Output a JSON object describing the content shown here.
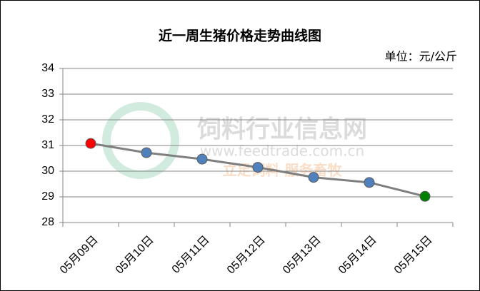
{
  "chart_data": {
    "type": "line",
    "title": "近一周生猪价格走势曲线图",
    "unit_label": "单位：元/公斤",
    "categories": [
      "05月09日",
      "05月10日",
      "05月11日",
      "05月12日",
      "05月13日",
      "05月14日",
      "05月15日"
    ],
    "series": [
      {
        "name": "生猪价格",
        "color": "#7f7f7f",
        "values": [
          31.08,
          30.72,
          30.47,
          30.15,
          29.76,
          29.56,
          29.02
        ],
        "marker_colors": [
          "#ff0000",
          "#4f81bd",
          "#4f81bd",
          "#4f81bd",
          "#4f81bd",
          "#4f81bd",
          "#008000"
        ]
      }
    ],
    "ylim": [
      28,
      34
    ],
    "yticks": [
      28,
      29,
      30,
      31,
      32,
      33,
      34
    ],
    "grid": true,
    "watermark": {
      "name": "饲料行业信息网",
      "url": "www.feedtrade.com.cn",
      "slogan": "立足饲料 服务畜牧"
    }
  }
}
